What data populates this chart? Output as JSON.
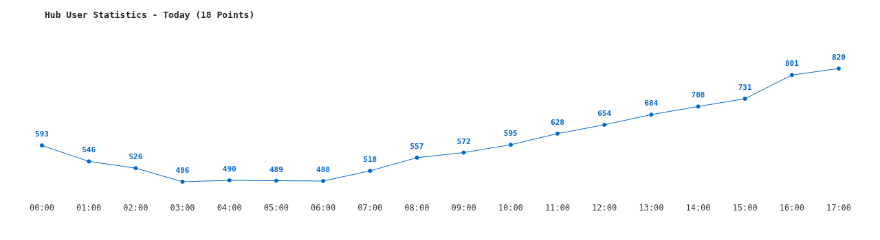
{
  "chart_data": {
    "type": "line",
    "title": "Hub User Statistics - Today (18 Points)",
    "categories": [
      "00:00",
      "01:00",
      "02:00",
      "03:00",
      "04:00",
      "05:00",
      "06:00",
      "07:00",
      "08:00",
      "09:00",
      "10:00",
      "11:00",
      "12:00",
      "13:00",
      "14:00",
      "15:00",
      "16:00",
      "17:00"
    ],
    "series": [
      {
        "color": "#0066cc",
        "values": [
          593,
          546,
          526,
          486,
          490,
          489,
          488,
          518,
          557,
          572,
          595,
          628,
          654,
          684,
          708,
          731,
          801,
          820
        ]
      }
    ],
    "data_labels": true,
    "marker": "circle",
    "line_style": "solid",
    "grid": false,
    "tick_labels": "x"
  }
}
